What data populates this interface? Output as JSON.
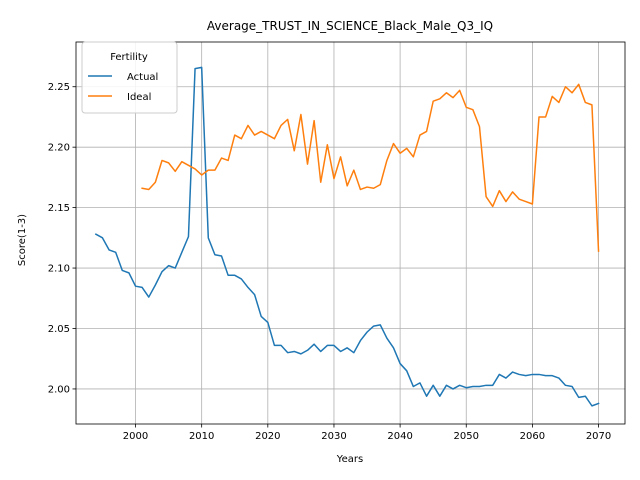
{
  "chart_data": {
    "type": "line",
    "title": "Average_TRUST_IN_SCIENCE_Black_Male_Q3_IQ",
    "xlabel": "Years",
    "ylabel": "Score(1-3)",
    "xlim": [
      1991,
      2074
    ],
    "ylim": [
      1.971,
      2.287
    ],
    "xticks": [
      2000,
      2010,
      2020,
      2030,
      2040,
      2050,
      2060,
      2070
    ],
    "yticks": [
      2.0,
      2.05,
      2.1,
      2.15,
      2.2,
      2.25
    ],
    "ytick_labels": [
      "2.00",
      "2.05",
      "2.10",
      "2.15",
      "2.20",
      "2.25"
    ],
    "grid": true,
    "legend": {
      "title": "Fertility",
      "placement": "top-left"
    },
    "series": [
      {
        "name": "Actual",
        "color": "#1f77b4",
        "x": [
          1994,
          1995,
          1996,
          1997,
          1998,
          1999,
          2000,
          2001,
          2002,
          2003,
          2004,
          2005,
          2006,
          2007,
          2008,
          2009,
          2010,
          2011,
          2012,
          2013,
          2014,
          2015,
          2016,
          2017,
          2018,
          2019,
          2020,
          2021,
          2022,
          2023,
          2024,
          2025,
          2026,
          2027,
          2028,
          2029,
          2030,
          2031,
          2032,
          2033,
          2034,
          2035,
          2036,
          2037,
          2038,
          2039,
          2040,
          2041,
          2042,
          2043,
          2044,
          2045,
          2046,
          2047,
          2048,
          2049,
          2050,
          2051,
          2052,
          2053,
          2054,
          2055,
          2056,
          2057,
          2058,
          2059,
          2060,
          2061,
          2062,
          2063,
          2064,
          2065,
          2066,
          2067,
          2068,
          2069,
          2070
        ],
        "y": [
          2.128,
          2.125,
          2.115,
          2.113,
          2.098,
          2.096,
          2.085,
          2.084,
          2.076,
          2.086,
          2.097,
          2.102,
          2.1,
          2.113,
          2.126,
          2.265,
          2.266,
          2.125,
          2.111,
          2.11,
          2.094,
          2.094,
          2.091,
          2.084,
          2.078,
          2.06,
          2.055,
          2.036,
          2.036,
          2.03,
          2.031,
          2.029,
          2.032,
          2.037,
          2.031,
          2.036,
          2.036,
          2.031,
          2.034,
          2.03,
          2.04,
          2.047,
          2.052,
          2.053,
          2.042,
          2.034,
          2.021,
          2.015,
          2.002,
          2.005,
          1.994,
          2.003,
          1.994,
          2.003,
          2.0,
          2.003,
          2.001,
          2.002,
          2.002,
          2.003,
          2.003,
          2.012,
          2.009,
          2.014,
          2.012,
          2.011,
          2.012,
          2.012,
          2.011,
          2.011,
          2.009,
          2.003,
          2.002,
          1.993,
          1.994,
          1.986,
          1.988
        ]
      },
      {
        "name": "Ideal",
        "color": "#ff7f0e",
        "x": [
          2001,
          2002,
          2003,
          2004,
          2005,
          2006,
          2007,
          2008,
          2009,
          2010,
          2011,
          2012,
          2013,
          2014,
          2015,
          2016,
          2017,
          2018,
          2019,
          2020,
          2021,
          2022,
          2023,
          2024,
          2025,
          2026,
          2027,
          2028,
          2029,
          2030,
          2031,
          2032,
          2033,
          2034,
          2035,
          2036,
          2037,
          2038,
          2039,
          2040,
          2041,
          2042,
          2043,
          2044,
          2045,
          2046,
          2047,
          2048,
          2049,
          2050,
          2051,
          2052,
          2053,
          2054,
          2055,
          2056,
          2057,
          2058,
          2059,
          2060,
          2061,
          2062,
          2063,
          2064,
          2065,
          2066,
          2067,
          2068,
          2069,
          2070
        ],
        "y": [
          2.166,
          2.165,
          2.171,
          2.189,
          2.187,
          2.18,
          2.188,
          2.185,
          2.182,
          2.177,
          2.181,
          2.181,
          2.191,
          2.189,
          2.21,
          2.207,
          2.218,
          2.21,
          2.213,
          2.21,
          2.207,
          2.218,
          2.223,
          2.197,
          2.227,
          2.186,
          2.222,
          2.171,
          2.202,
          2.174,
          2.192,
          2.168,
          2.181,
          2.165,
          2.167,
          2.166,
          2.169,
          2.189,
          2.203,
          2.195,
          2.199,
          2.192,
          2.21,
          2.213,
          2.238,
          2.24,
          2.245,
          2.241,
          2.247,
          2.233,
          2.231,
          2.217,
          2.159,
          2.151,
          2.164,
          2.155,
          2.163,
          2.157,
          2.155,
          2.153,
          2.225,
          2.225,
          2.242,
          2.237,
          2.25,
          2.245,
          2.252,
          2.237,
          2.235,
          2.114
        ]
      }
    ]
  }
}
